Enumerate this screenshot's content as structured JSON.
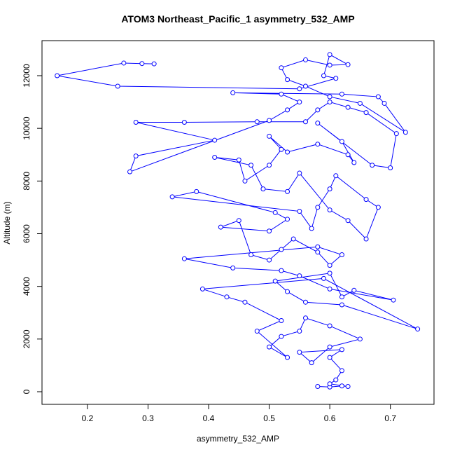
{
  "chart_data": {
    "type": "line",
    "title": "ATOM3 Northeast_Pacific_1 asymmetry_532_AMP",
    "x_label": "asymmetry_532_AMP",
    "y_label": "Altitude (m)",
    "xlim": [
      0.125,
      0.772
    ],
    "ylim": [
      -479,
      13330
    ],
    "xticks": [
      0.2,
      0.3,
      0.4,
      0.5,
      0.6,
      0.7
    ],
    "yticks": [
      0,
      2000,
      4000,
      6000,
      8000,
      10000,
      12000
    ],
    "x": [
      0.58,
      0.6,
      0.62,
      0.63,
      0.6,
      0.61,
      0.62,
      0.6,
      0.62,
      0.55,
      0.57,
      0.6,
      0.65,
      0.6,
      0.56,
      0.55,
      0.52,
      0.5,
      0.53,
      0.48,
      0.52,
      0.46,
      0.43,
      0.39,
      0.59,
      0.745,
      0.62,
      0.56,
      0.53,
      0.51,
      0.6,
      0.62,
      0.64,
      0.705,
      0.6,
      0.55,
      0.52,
      0.44,
      0.36,
      0.58,
      0.62,
      0.6,
      0.58,
      0.54,
      0.52,
      0.5,
      0.47,
      0.45,
      0.42,
      0.5,
      0.53,
      0.51,
      0.38,
      0.34,
      0.55,
      0.57,
      0.58,
      0.6,
      0.61,
      0.66,
      0.68,
      0.66,
      0.63,
      0.6,
      0.55,
      0.53,
      0.49,
      0.47,
      0.41,
      0.45,
      0.46,
      0.5,
      0.52,
      0.5,
      0.53,
      0.58,
      0.63,
      0.64,
      0.62,
      0.58,
      0.67,
      0.7,
      0.71,
      0.66,
      0.63,
      0.6,
      0.58,
      0.56,
      0.48,
      0.36,
      0.28,
      0.41,
      0.28,
      0.27,
      0.5,
      0.53,
      0.55,
      0.52,
      0.44,
      0.62,
      0.68,
      0.69,
      0.725,
      0.65,
      0.6,
      0.56,
      0.53,
      0.52,
      0.56,
      0.6,
      0.63,
      0.6,
      0.59,
      0.61,
      0.55,
      0.25,
      0.15,
      0.26,
      0.29,
      0.31
    ],
    "series": [
      {
        "name": "asymmetry_532_AMP",
        "color": "#0000ff",
        "values": [
          200,
          180,
          220,
          200,
          300,
          450,
          800,
          1300,
          1600,
          1500,
          1100,
          1700,
          2000,
          2500,
          2800,
          2300,
          2100,
          1700,
          1300,
          2300,
          2700,
          3400,
          3600,
          3900,
          4300,
          2380,
          3300,
          3400,
          3800,
          4200,
          4500,
          3600,
          3850,
          3480,
          3900,
          4400,
          4600,
          4700,
          5050,
          5500,
          5200,
          4800,
          5300,
          5800,
          5400,
          5000,
          5200,
          6500,
          6250,
          6100,
          6550,
          6800,
          7600,
          7400,
          6850,
          6200,
          7000,
          7700,
          8200,
          7300,
          7000,
          5800,
          6500,
          6900,
          8300,
          7600,
          7700,
          8600,
          8900,
          8800,
          8000,
          8600,
          9200,
          9700,
          9100,
          9400,
          9000,
          8700,
          9500,
          10200,
          8600,
          8500,
          9800,
          10600,
          10800,
          11000,
          10700,
          10250,
          10250,
          10230,
          10230,
          9550,
          8950,
          8350,
          10300,
          10700,
          11000,
          11300,
          11350,
          11300,
          11200,
          10950,
          9850,
          10950,
          11200,
          11600,
          11850,
          12300,
          12600,
          12400,
          12420,
          12800,
          12000,
          11900,
          11500,
          11600,
          12000,
          12480,
          12460,
          12450
        ]
      }
    ]
  }
}
